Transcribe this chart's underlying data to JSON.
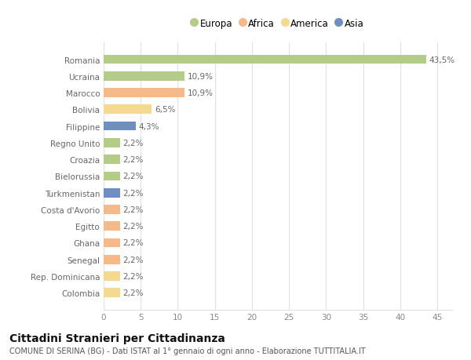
{
  "categories": [
    "Colombia",
    "Rep. Dominicana",
    "Senegal",
    "Ghana",
    "Egitto",
    "Costa d'Avorio",
    "Turkmenistan",
    "Bielorussia",
    "Croazia",
    "Regno Unito",
    "Filippine",
    "Bolivia",
    "Marocco",
    "Ucraina",
    "Romania"
  ],
  "values": [
    2.2,
    2.2,
    2.2,
    2.2,
    2.2,
    2.2,
    2.2,
    2.2,
    2.2,
    2.2,
    4.3,
    6.5,
    10.9,
    10.9,
    43.5
  ],
  "labels": [
    "2,2%",
    "2,2%",
    "2,2%",
    "2,2%",
    "2,2%",
    "2,2%",
    "2,2%",
    "2,2%",
    "2,2%",
    "2,2%",
    "4,3%",
    "6,5%",
    "10,9%",
    "10,9%",
    "43,5%"
  ],
  "colors": [
    "#f5d990",
    "#f5d990",
    "#f5b98a",
    "#f5b98a",
    "#f5b98a",
    "#f5b98a",
    "#6e8fbf",
    "#b3cc88",
    "#b3cc88",
    "#b3cc88",
    "#6e8fbf",
    "#f5d990",
    "#f5b98a",
    "#b3cc88",
    "#b3cc88"
  ],
  "legend": [
    {
      "label": "Europa",
      "color": "#b3cc88"
    },
    {
      "label": "Africa",
      "color": "#f5b98a"
    },
    {
      "label": "America",
      "color": "#f5d990"
    },
    {
      "label": "Asia",
      "color": "#6e8fbf"
    }
  ],
  "xlim": [
    0,
    47
  ],
  "xticks": [
    0,
    5,
    10,
    15,
    20,
    25,
    30,
    35,
    40,
    45
  ],
  "title": "Cittadini Stranieri per Cittadinanza",
  "subtitle": "COMUNE DI SERINA (BG) - Dati ISTAT al 1° gennaio di ogni anno - Elaborazione TUTTITALIA.IT",
  "bg_color": "#ffffff",
  "grid_color": "#e0e0e0",
  "bar_height": 0.55,
  "label_fontsize": 7.5,
  "tick_fontsize": 7.5,
  "title_fontsize": 10,
  "subtitle_fontsize": 7
}
